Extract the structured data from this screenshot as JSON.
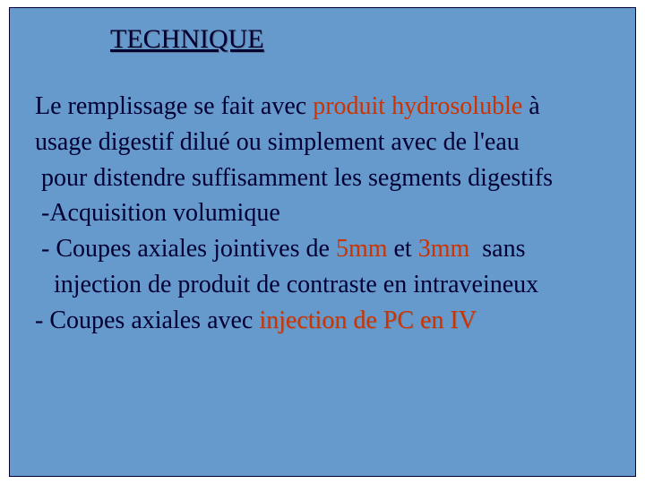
{
  "slide": {
    "background_color": "#6699cc",
    "border_color": "#000033",
    "title": {
      "text": "TECHNIQUE",
      "color": "#000033",
      "font_size_pt": 30,
      "underline": true
    },
    "body": {
      "font_size_pt": 28,
      "text_color": "#000033",
      "highlight_color": "#cc3300",
      "lines": {
        "l1a": "Le remplissage se fait avec ",
        "l1b": "produit hydrosoluble",
        "l1c": " à",
        "l2": "usage digestif dilué ou simplement avec de l'eau",
        "l3": " pour distendre suffisamment les segments digestifs",
        "l4": " -Acquisition volumique",
        "l5a": " - Coupes axiales jointives de ",
        "l5b": "5mm",
        "l5c": " et ",
        "l5d": "3mm",
        "l5e": "  sans",
        "l6": "   injection de produit de contraste en intraveineux",
        "l7a": "- Coupes axiales avec ",
        "l7b": "injection de PC en IV"
      }
    }
  }
}
